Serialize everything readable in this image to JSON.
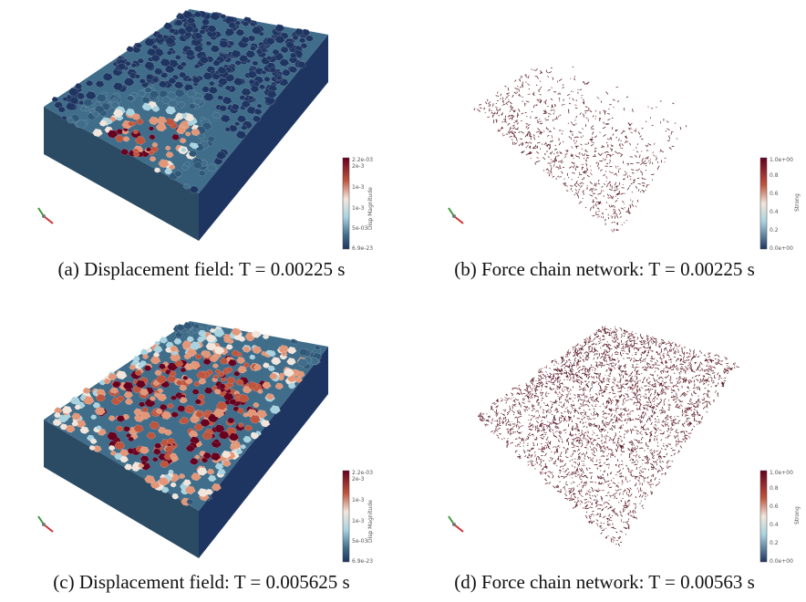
{
  "figure": {
    "panels": [
      {
        "id": "a",
        "kind": "displacement",
        "caption": "(a) Displacement field: T = 0.00225 s",
        "colorbar": {
          "top": "2.2e-03",
          "upper": "2e-3",
          "mid": "1e-3",
          "low_mid": "1e-3",
          "lower": "5e-03",
          "bottom": "6.9e-23",
          "title": "Disp Magnitude"
        },
        "spread": 0.35
      },
      {
        "id": "b",
        "kind": "forcechain",
        "caption": "(b) Force chain network: T = 0.00225 s",
        "colorbar": {
          "top": "1.0e+00",
          "t1": "0.8",
          "t2": "0.6",
          "t3": "0.4",
          "t4": "0.2",
          "bottom": "0.0e+00",
          "title": "Strong"
        },
        "spread": 0.35
      },
      {
        "id": "c",
        "kind": "displacement",
        "caption": "(c) Displacement field: T = 0.005625 s",
        "colorbar": {
          "top": "2.2e-03",
          "upper": "2e-3",
          "mid": "1e-3",
          "low_mid": "1e-3",
          "lower": "5e-03",
          "bottom": "6.9e-23",
          "title": "Disp Magnitude"
        },
        "spread": 0.8
      },
      {
        "id": "d",
        "kind": "forcechain",
        "caption": "(d) Force chain network: T = 0.00563 s",
        "colorbar": {
          "top": "1.0e+00",
          "t1": "0.8",
          "t2": "0.6",
          "t3": "0.4",
          "t4": "0.2",
          "bottom": "0.0e+00",
          "title": "Strong"
        },
        "spread": 1.0
      }
    ],
    "colors": {
      "dark_blue": "#1f3561",
      "mid_blue": "#3f6d8a",
      "light_blue": "#a9d3e0",
      "pale": "#f2e6dc",
      "salmon": "#e39778",
      "red": "#c0553e",
      "dark_red": "#67001f",
      "chain": "#4a0b16"
    }
  }
}
